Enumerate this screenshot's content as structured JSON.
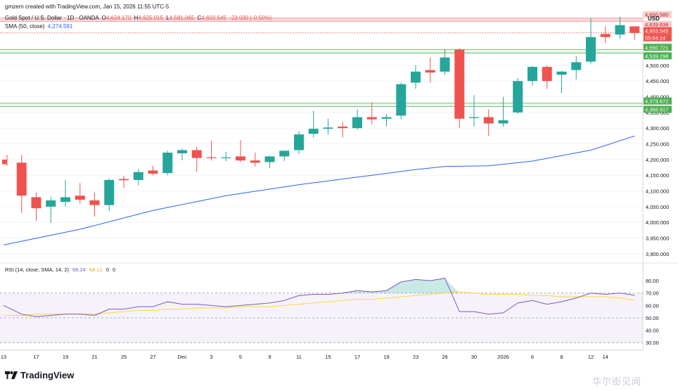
{
  "header": {
    "created_line": "gmzern created with TradingView.com, Jan 15, 2026 11:55 UTC-5",
    "symbol_title": "Gold Spot / U.S. Dollar · 1D · OANDA",
    "ohlc": {
      "open_label": "O",
      "open": "4,624.170",
      "high_label": "H",
      "high": "4,625.015",
      "low_label": "L",
      "low": "4,581.065",
      "close_label": "C",
      "close": "4,603.545",
      "change": "-23.030 (-0.50%)"
    },
    "sma_label": "SMA (50, close)",
    "sma_value": "4,274.591"
  },
  "rsi_header": {
    "label": "RSI (14, close, SMA, 14, 2)",
    "rsi_value": "68.24",
    "ma_value": "64.12",
    "extra1": "0",
    "extra2": "0"
  },
  "currency": "USD",
  "brand": "TradingView",
  "watermark": "华尔街见闻",
  "colors": {
    "up": "#26a69a",
    "down": "#ef5350",
    "sma": "#2962ff",
    "rsi_line": "#7e57c2",
    "rsi_ma": "#fdd835",
    "zone_red": "#f7c9c9",
    "zone_green": "#66bb6a"
  },
  "price_labels": {
    "resistance_high": "4,650.580",
    "resistance_low": "4,639.836",
    "current_price": "4,603.545",
    "countdown": "05:04:14",
    "support1_high": "4,550.721",
    "support1_low": "4,539.298",
    "support2_high": "4,379.672",
    "support2_low": "4,368.917"
  },
  "chart_data": {
    "type": "candlestick",
    "price_axis": {
      "ylim": [
        3875,
        4670
      ],
      "ticks": [
        3900,
        3950,
        4000,
        4050,
        4100,
        4150,
        4200,
        4250,
        4300,
        4350,
        4400,
        4450,
        4500
      ],
      "tick_labels": [
        "3,900.000",
        "3,950.000",
        "4,000.000",
        "4,050.000",
        "4,100.000",
        "4,150.000",
        "4,200.000",
        "4,250.000",
        "4,300.000",
        "4,350.000",
        "4,400.000",
        "4,450.000",
        "4,500.000"
      ]
    },
    "x_axis_labels": [
      {
        "i": 0,
        "label": "13"
      },
      {
        "i": 2,
        "label": "17"
      },
      {
        "i": 4,
        "label": "19"
      },
      {
        "i": 6,
        "label": "21"
      },
      {
        "i": 8,
        "label": "25"
      },
      {
        "i": 10,
        "label": "27"
      },
      {
        "i": 12,
        "label": "Dec"
      },
      {
        "i": 14,
        "label": "3"
      },
      {
        "i": 16,
        "label": "5"
      },
      {
        "i": 18,
        "label": "9"
      },
      {
        "i": 20,
        "label": "11"
      },
      {
        "i": 22,
        "label": "15"
      },
      {
        "i": 24,
        "label": "17"
      },
      {
        "i": 26,
        "label": "19"
      },
      {
        "i": 28,
        "label": "23"
      },
      {
        "i": 30,
        "label": "26"
      },
      {
        "i": 32,
        "label": "30"
      },
      {
        "i": 34,
        "label": "2026"
      },
      {
        "i": 36,
        "label": "6"
      },
      {
        "i": 38,
        "label": "8"
      },
      {
        "i": 40,
        "label": "12"
      },
      {
        "i": 41,
        "label": "14"
      }
    ],
    "candles": [
      {
        "o": 4200,
        "h": 4215,
        "l": 4180,
        "c": 4185
      },
      {
        "o": 4190,
        "h": 4215,
        "l": 4030,
        "c": 4085
      },
      {
        "o": 4080,
        "h": 4095,
        "l": 4005,
        "c": 4045
      },
      {
        "o": 4050,
        "h": 4082,
        "l": 3998,
        "c": 4070
      },
      {
        "o": 4065,
        "h": 4135,
        "l": 4050,
        "c": 4080
      },
      {
        "o": 4085,
        "h": 4125,
        "l": 4060,
        "c": 4072
      },
      {
        "o": 4070,
        "h": 4095,
        "l": 4018,
        "c": 4055
      },
      {
        "o": 4055,
        "h": 4140,
        "l": 4035,
        "c": 4135
      },
      {
        "o": 4138,
        "h": 4148,
        "l": 4110,
        "c": 4134
      },
      {
        "o": 4135,
        "h": 4170,
        "l": 4118,
        "c": 4160
      },
      {
        "o": 4165,
        "h": 4180,
        "l": 4150,
        "c": 4155
      },
      {
        "o": 4157,
        "h": 4228,
        "l": 4150,
        "c": 4222
      },
      {
        "o": 4220,
        "h": 4235,
        "l": 4198,
        "c": 4230
      },
      {
        "o": 4230,
        "h": 4240,
        "l": 4160,
        "c": 4205
      },
      {
        "o": 4207,
        "h": 4260,
        "l": 4197,
        "c": 4205
      },
      {
        "o": 4207,
        "h": 4225,
        "l": 4195,
        "c": 4207
      },
      {
        "o": 4210,
        "h": 4262,
        "l": 4192,
        "c": 4197
      },
      {
        "o": 4197,
        "h": 4222,
        "l": 4178,
        "c": 4190
      },
      {
        "o": 4192,
        "h": 4212,
        "l": 4172,
        "c": 4210
      },
      {
        "o": 4210,
        "h": 4228,
        "l": 4195,
        "c": 4228
      },
      {
        "o": 4230,
        "h": 4290,
        "l": 4218,
        "c": 4280
      },
      {
        "o": 4282,
        "h": 4355,
        "l": 4270,
        "c": 4298
      },
      {
        "o": 4298,
        "h": 4330,
        "l": 4280,
        "c": 4302
      },
      {
        "o": 4305,
        "h": 4320,
        "l": 4270,
        "c": 4300
      },
      {
        "o": 4300,
        "h": 4360,
        "l": 4295,
        "c": 4335
      },
      {
        "o": 4335,
        "h": 4382,
        "l": 4312,
        "c": 4328
      },
      {
        "o": 4330,
        "h": 4345,
        "l": 4305,
        "c": 4335
      },
      {
        "o": 4340,
        "h": 4445,
        "l": 4328,
        "c": 4440
      },
      {
        "o": 4445,
        "h": 4500,
        "l": 4425,
        "c": 4480
      },
      {
        "o": 4485,
        "h": 4525,
        "l": 4445,
        "c": 4477
      },
      {
        "o": 4480,
        "h": 4550,
        "l": 4470,
        "c": 4525
      },
      {
        "o": 4550,
        "h": 4555,
        "l": 4300,
        "c": 4330
      },
      {
        "o": 4332,
        "h": 4405,
        "l": 4305,
        "c": 4335
      },
      {
        "o": 4335,
        "h": 4360,
        "l": 4275,
        "c": 4315
      },
      {
        "o": 4315,
        "h": 4400,
        "l": 4305,
        "c": 4325
      },
      {
        "o": 4350,
        "h": 4460,
        "l": 4345,
        "c": 4450
      },
      {
        "o": 4450,
        "h": 4498,
        "l": 4435,
        "c": 4495
      },
      {
        "o": 4495,
        "h": 4500,
        "l": 4425,
        "c": 4450
      },
      {
        "o": 4470,
        "h": 4483,
        "l": 4412,
        "c": 4480
      },
      {
        "o": 4485,
        "h": 4530,
        "l": 4455,
        "c": 4510
      },
      {
        "o": 4512,
        "h": 4650,
        "l": 4505,
        "c": 4590
      },
      {
        "o": 4600,
        "h": 4625,
        "l": 4570,
        "c": 4590
      },
      {
        "o": 4598,
        "h": 4655,
        "l": 4585,
        "c": 4628
      },
      {
        "o": 4624,
        "h": 4625,
        "l": 4581,
        "c": 4603
      }
    ],
    "sma_50": {
      "name": "SMA (50, close)",
      "points": [
        {
          "i": 0,
          "v": 3928
        },
        {
          "i": 5,
          "v": 3978
        },
        {
          "i": 10,
          "v": 4038
        },
        {
          "i": 15,
          "v": 4085
        },
        {
          "i": 20,
          "v": 4120
        },
        {
          "i": 25,
          "v": 4150
        },
        {
          "i": 28,
          "v": 4168
        },
        {
          "i": 30,
          "v": 4178
        },
        {
          "i": 33,
          "v": 4180
        },
        {
          "i": 36,
          "v": 4195
        },
        {
          "i": 40,
          "v": 4230
        },
        {
          "i": 43,
          "v": 4275
        }
      ]
    },
    "zones": [
      {
        "low": 4639.836,
        "high": 4650.58,
        "kind": "resistance"
      },
      {
        "low": 4539.298,
        "high": 4550.721,
        "kind": "support"
      },
      {
        "low": 4368.917,
        "high": 4379.672,
        "kind": "support"
      }
    ],
    "current_price": 4603.545,
    "rsi": {
      "ylim": [
        25,
        92
      ],
      "ticks": [
        30,
        40,
        50,
        60,
        70,
        80
      ],
      "tick_labels": [
        "30.00",
        "40.00",
        "50.00",
        "60.00",
        "70.00",
        "80.00"
      ],
      "overbought": 70,
      "oversold": 30,
      "middle": 50,
      "rsi_series": [
        60,
        53,
        51,
        52,
        53,
        53,
        52,
        57,
        57,
        59,
        59,
        63,
        61,
        61,
        60,
        59,
        60,
        61,
        62,
        64,
        68,
        69,
        69,
        70,
        72,
        71,
        72,
        79,
        81,
        80,
        82,
        55,
        55,
        53,
        54,
        62,
        64,
        61,
        63,
        66,
        70,
        69,
        70,
        68.24
      ],
      "ma_series": [
        52,
        52,
        53,
        53,
        53,
        53,
        53,
        54,
        55,
        56,
        56,
        57,
        57,
        58,
        58,
        58,
        59,
        59,
        59,
        60,
        61,
        62,
        63,
        64,
        65,
        65,
        66,
        67,
        68,
        69,
        70,
        71,
        70,
        69,
        69,
        69,
        68,
        68,
        67,
        67,
        67,
        67,
        66,
        64.12
      ]
    }
  }
}
